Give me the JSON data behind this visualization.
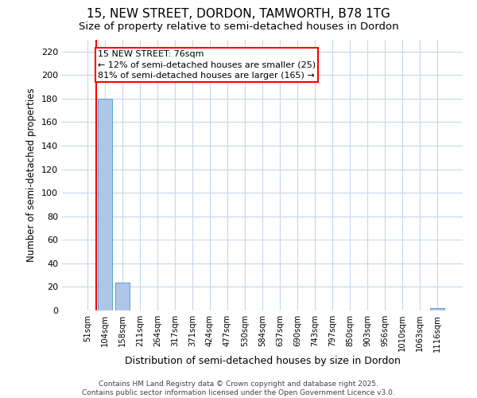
{
  "title": "15, NEW STREET, DORDON, TAMWORTH, B78 1TG",
  "subtitle": "Size of property relative to semi-detached houses in Dordon",
  "xlabel": "Distribution of semi-detached houses by size in Dordon",
  "ylabel": "Number of semi-detached properties",
  "categories": [
    "51sqm",
    "104sqm",
    "158sqm",
    "211sqm",
    "264sqm",
    "317sqm",
    "371sqm",
    "424sqm",
    "477sqm",
    "530sqm",
    "584sqm",
    "637sqm",
    "690sqm",
    "743sqm",
    "797sqm",
    "850sqm",
    "903sqm",
    "956sqm",
    "1010sqm",
    "1063sqm",
    "1116sqm"
  ],
  "values": [
    0,
    180,
    24,
    0,
    0,
    0,
    0,
    0,
    0,
    0,
    0,
    0,
    0,
    0,
    0,
    0,
    0,
    0,
    0,
    0,
    2
  ],
  "highlight_color": "#aec6e8",
  "bar_edge_color": "#5a9fd4",
  "ylim": [
    0,
    230
  ],
  "yticks": [
    0,
    20,
    40,
    60,
    80,
    100,
    120,
    140,
    160,
    180,
    200,
    220
  ],
  "property_label": "15 NEW STREET: 76sqm",
  "annotation_line1": "← 12% of semi-detached houses are smaller (25)",
  "annotation_line2": "81% of semi-detached houses are larger (165) →",
  "vline_x": 0.5,
  "bg_color": "#ffffff",
  "grid_color": "#c8d8ea",
  "title_fontsize": 11,
  "subtitle_fontsize": 9.5,
  "ylabel_fontsize": 8.5,
  "xlabel_fontsize": 9,
  "annotation_fontsize": 8,
  "footer_text": "Contains HM Land Registry data © Crown copyright and database right 2025.\nContains public sector information licensed under the Open Government Licence v3.0.",
  "footer_fontsize": 6.5
}
